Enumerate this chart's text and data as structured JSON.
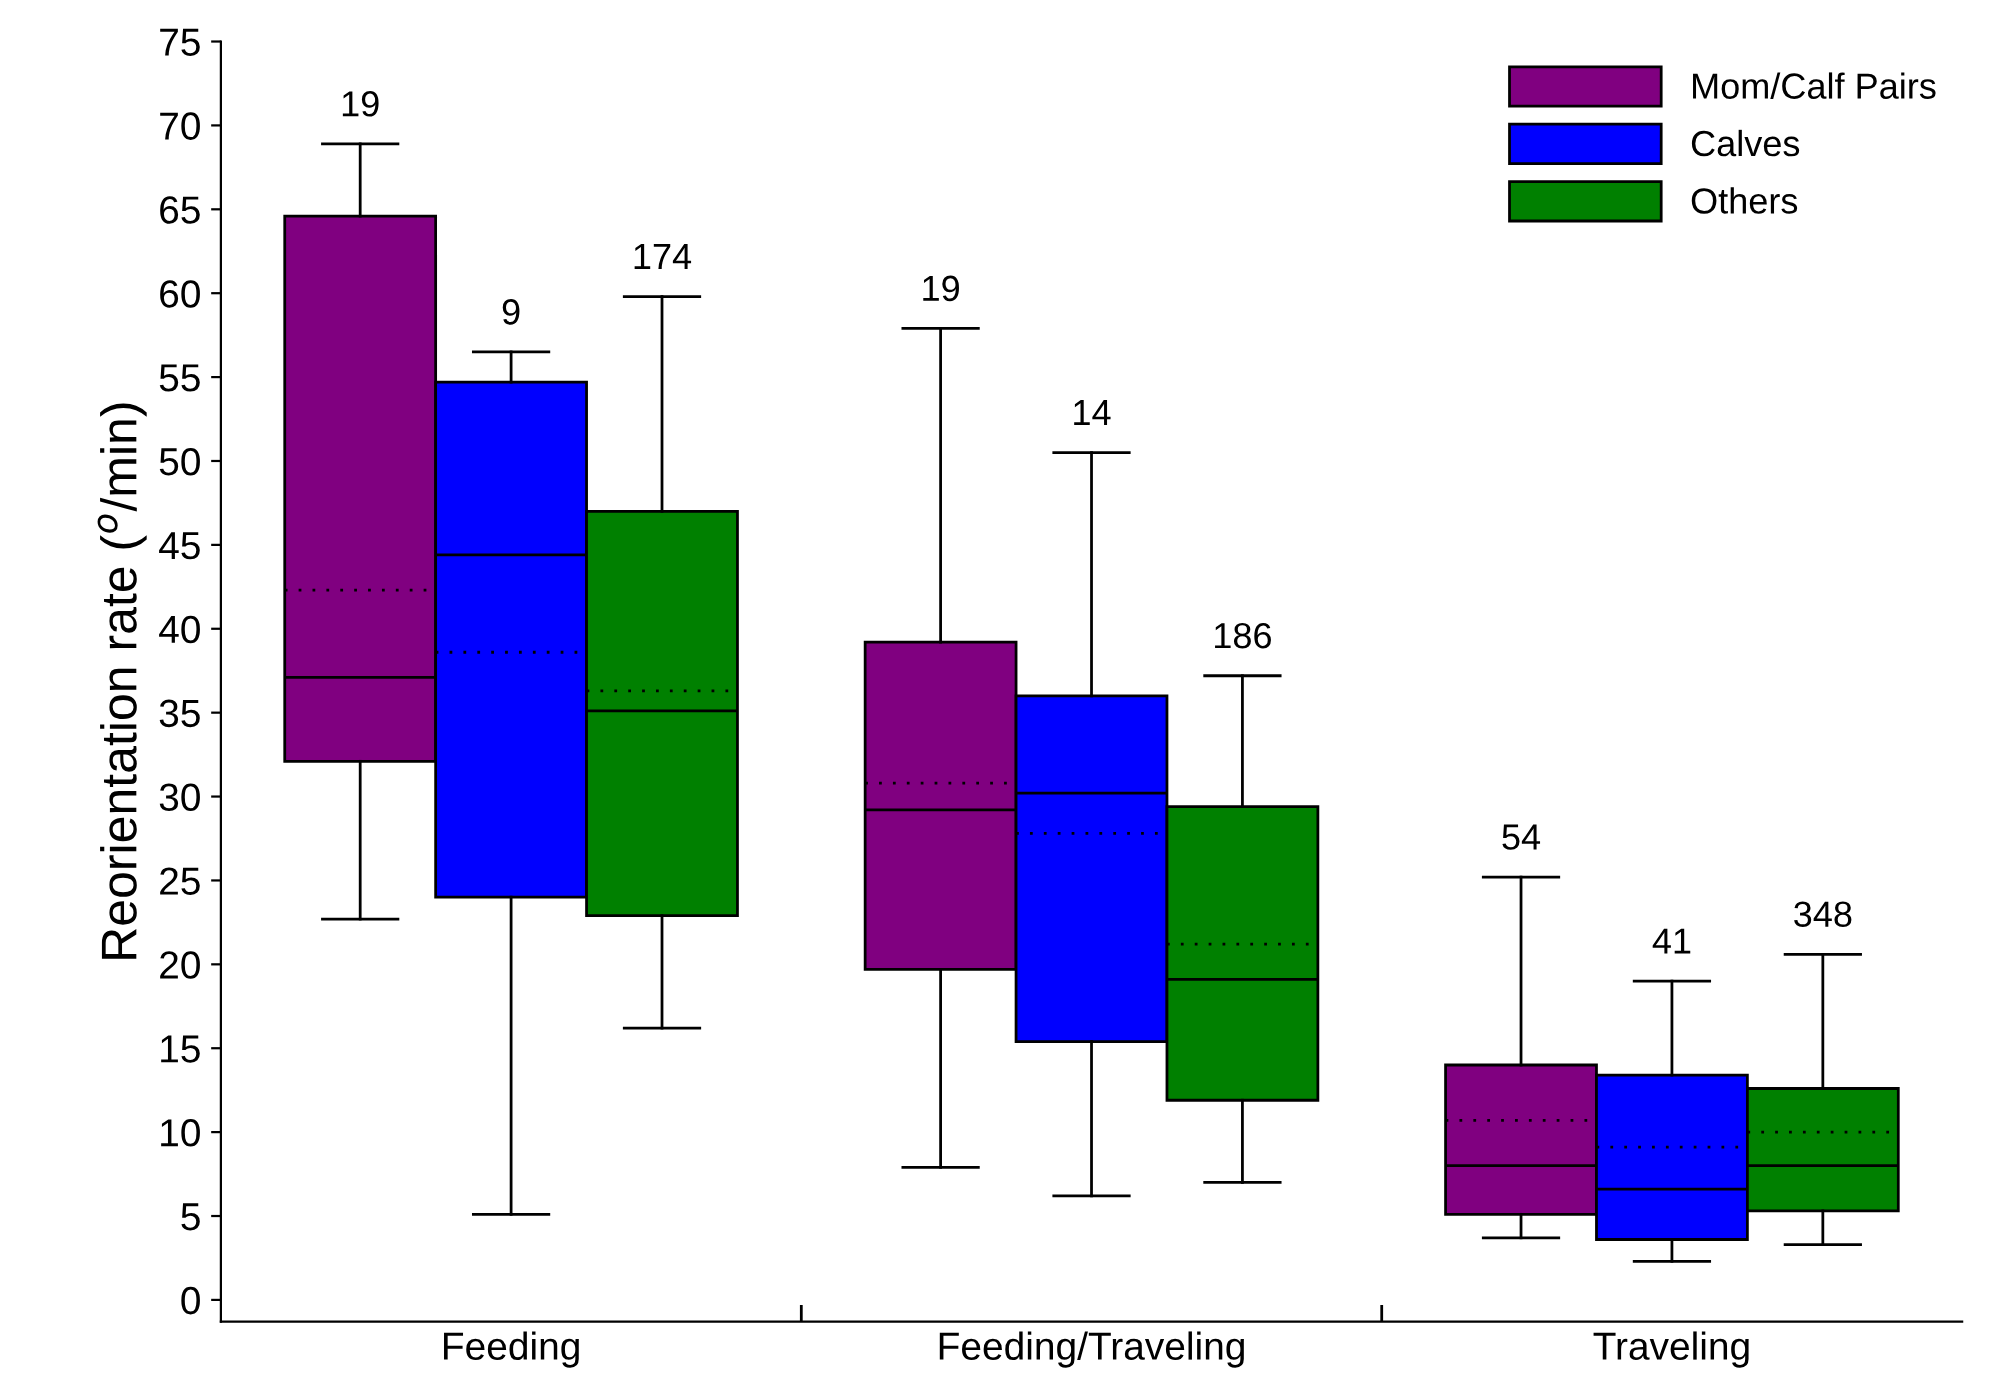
{
  "chart_data": {
    "type": "box",
    "ylabel": "Reorientation rate ($^{o}$/min)",
    "categories": [
      "Feeding",
      "Feeding/Traveling",
      "Traveling"
    ],
    "ylim": [
      -1.3,
      75
    ],
    "yticks": [
      0,
      5,
      10,
      15,
      20,
      25,
      30,
      35,
      40,
      45,
      50,
      55,
      60,
      65,
      70,
      75
    ],
    "grid": false,
    "legend": "top right",
    "series": [
      {
        "name": "Mom/Calf Pairs",
        "color": "#800080",
        "value_labels": [
          "19",
          "19",
          "54"
        ],
        "boxes": [
          {
            "low": 22.7,
            "q1": 32.1,
            "median": 37.1,
            "q3": 64.6,
            "high": 68.9,
            "mean": 42.3
          },
          {
            "low": 7.9,
            "q1": 19.7,
            "median": 29.2,
            "q3": 39.2,
            "high": 57.9,
            "mean": 30.8
          },
          {
            "low": 3.7,
            "q1": 5.1,
            "median": 8.0,
            "q3": 14.0,
            "high": 25.2,
            "mean": 10.7
          }
        ]
      },
      {
        "name": "Calves",
        "color": "#0000ff",
        "value_labels": [
          "9",
          "14",
          "41"
        ],
        "boxes": [
          {
            "low": 5.1,
            "q1": 24.0,
            "median": 44.4,
            "q3": 54.7,
            "high": 56.5,
            "mean": 38.6
          },
          {
            "low": 6.2,
            "q1": 15.4,
            "median": 30.2,
            "q3": 36.0,
            "high": 50.5,
            "mean": 27.8
          },
          {
            "low": 2.3,
            "q1": 3.6,
            "median": 6.6,
            "q3": 13.4,
            "high": 19.0,
            "mean": 9.1
          }
        ]
      },
      {
        "name": "Others",
        "color": "#008000",
        "value_labels": [
          "174",
          "186",
          "348"
        ],
        "boxes": [
          {
            "low": 16.2,
            "q1": 22.9,
            "median": 35.1,
            "q3": 47.0,
            "high": 59.8,
            "mean": 36.3
          },
          {
            "low": 7.0,
            "q1": 11.9,
            "median": 19.1,
            "q3": 29.4,
            "high": 37.2,
            "mean": 21.2
          },
          {
            "low": 3.3,
            "q1": 5.3,
            "median": 8.0,
            "q3": 12.6,
            "high": 20.6,
            "mean": 10.0
          }
        ]
      }
    ]
  }
}
